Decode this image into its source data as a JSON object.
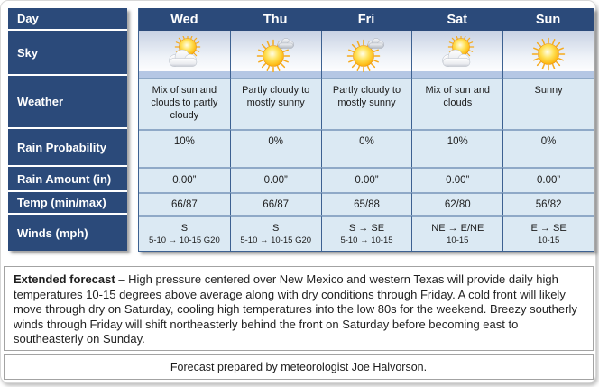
{
  "left_labels": [
    "Day",
    "Sky",
    "Weather",
    "Rain Probability",
    "Rain Amount (in)",
    "Temp (min/max)",
    "Winds (mph)"
  ],
  "columns": [
    {
      "day": "Wed",
      "sky_icon": "sun-behind-clouds",
      "weather": "Mix of sun and clouds to partly cloudy",
      "rain_probability": "10%",
      "rain_amount": "0.00”",
      "temp": "66/87",
      "winds_direction": "S",
      "winds_speed": "5-10 → 10-15 G20"
    },
    {
      "day": "Thu",
      "sky_icon": "sun-small-cloud",
      "weather": "Partly cloudy to mostly sunny",
      "rain_probability": "0%",
      "rain_amount": "0.00”",
      "temp": "66/87",
      "winds_direction": "S",
      "winds_speed": "5-10 → 10-15 G20"
    },
    {
      "day": "Fri",
      "sky_icon": "sun-small-cloud",
      "weather": "Partly cloudy to mostly sunny",
      "rain_probability": "0%",
      "rain_amount": "0.00”",
      "temp": "65/88",
      "winds_direction": "S → SE",
      "winds_speed": "5-10 → 10-15"
    },
    {
      "day": "Sat",
      "sky_icon": "sun-behind-clouds",
      "weather": "Mix of sun and clouds",
      "rain_probability": "10%",
      "rain_amount": "0.00”",
      "temp": "62/80",
      "winds_direction": "NE → E/NE",
      "winds_speed": "10-15"
    },
    {
      "day": "Sun",
      "sky_icon": "sunny",
      "weather": "Sunny",
      "rain_probability": "0%",
      "rain_amount": "0.00”",
      "temp": "56/82",
      "winds_direction": "E → SE",
      "winds_speed": "10-15"
    }
  ],
  "extended_forecast": {
    "heading": "Extended forecast",
    "body": " – High pressure centered over New Mexico and western Texas will provide daily high temperatures 10-15 degrees above average along with dry conditions through Friday. A cold front will likely move through dry on Saturday, cooling high temperatures into the low 80s for the weekend. Breezy southerly winds through Friday will shift northeasterly behind the front on Saturday before becoming east to southeasterly on Sunday."
  },
  "footer": "Forecast prepared by meteorologist Joe Halvorson.",
  "colors": {
    "navy": "#2b4a7a",
    "cell_background": "#dbe9f3",
    "border_dark_blue": "#3d6191",
    "border_light_blue": "#8fa9c7",
    "sun_yellow": "#fdb913",
    "text": "#1c1c1c"
  }
}
